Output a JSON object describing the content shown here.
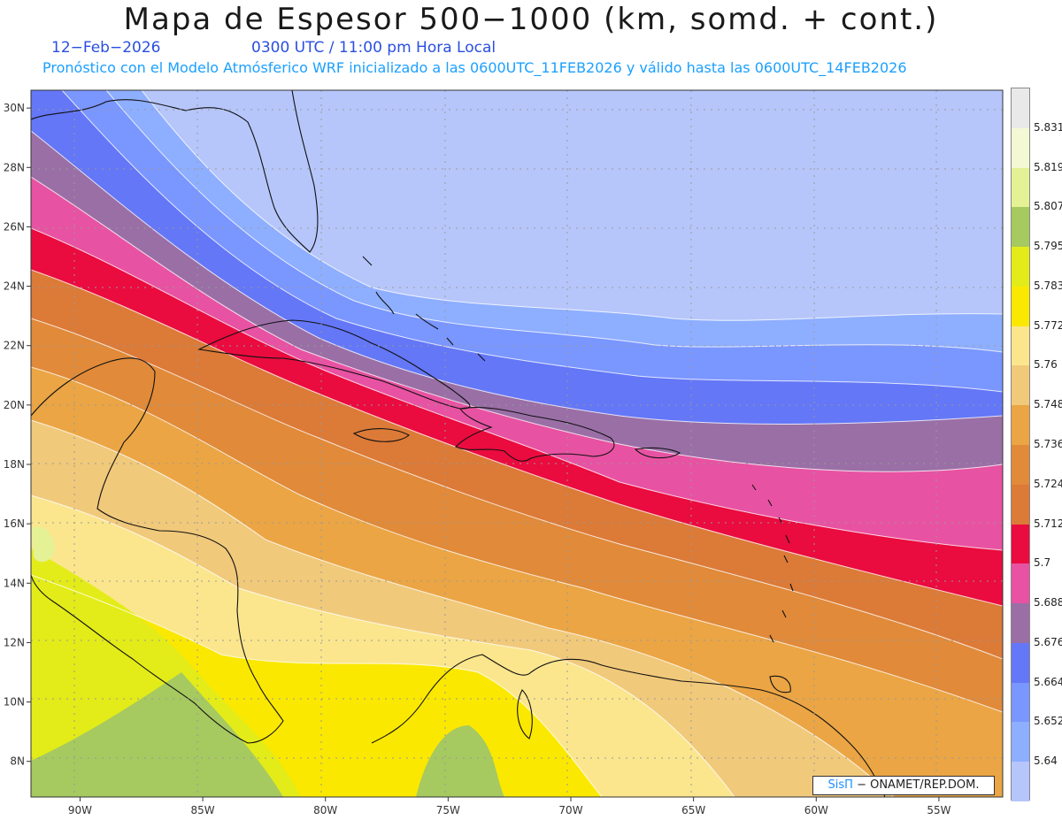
{
  "header": {
    "title": "Mapa de Espesor 500−1000 (km, somd. + cont.)",
    "date": "12−Feb−2026",
    "time": "0300 UTC / 11:00 pm Hora Local",
    "subtitle": "Pronóstico con el Modelo Atmósferico WRF inicializado a las 0600UTC_11FEB2026 y válido hasta las  0600UTC_14FEB2026"
  },
  "map": {
    "lon_ticks": [
      "90W",
      "85W",
      "80W",
      "75W",
      "70W",
      "65W",
      "60W",
      "55W"
    ],
    "lat_ticks": [
      "30N",
      "28N",
      "26N",
      "24N",
      "22N",
      "20N",
      "18N",
      "16N",
      "14N",
      "12N",
      "10N",
      "8N"
    ],
    "lon_range": [
      -92,
      -52.4
    ],
    "lat_range": [
      6.8,
      30.6
    ]
  },
  "legend": {
    "levels": [
      "5.831",
      "5.819",
      "5.807",
      "5.795",
      "5.783",
      "5.772",
      "5.76",
      "5.748",
      "5.736",
      "5.724",
      "5.712",
      "5.7",
      "5.688",
      "5.676",
      "5.664",
      "5.652",
      "5.64"
    ],
    "colors": [
      "#e9e9e9",
      "#f4f8d4",
      "#e4f195",
      "#a6c960",
      "#e3ec18",
      "#fbe800",
      "#fbe68e",
      "#f1c97b",
      "#eba544",
      "#e08a3a",
      "#dc7a38",
      "#ea0b3f",
      "#e852a2",
      "#9a6fa6",
      "#6477f7",
      "#7a96ff",
      "#8eaeff",
      "#b6c6fb"
    ]
  },
  "credit": {
    "brand": "SisΠ",
    "text": "− ONAMET/REP.DOM."
  }
}
